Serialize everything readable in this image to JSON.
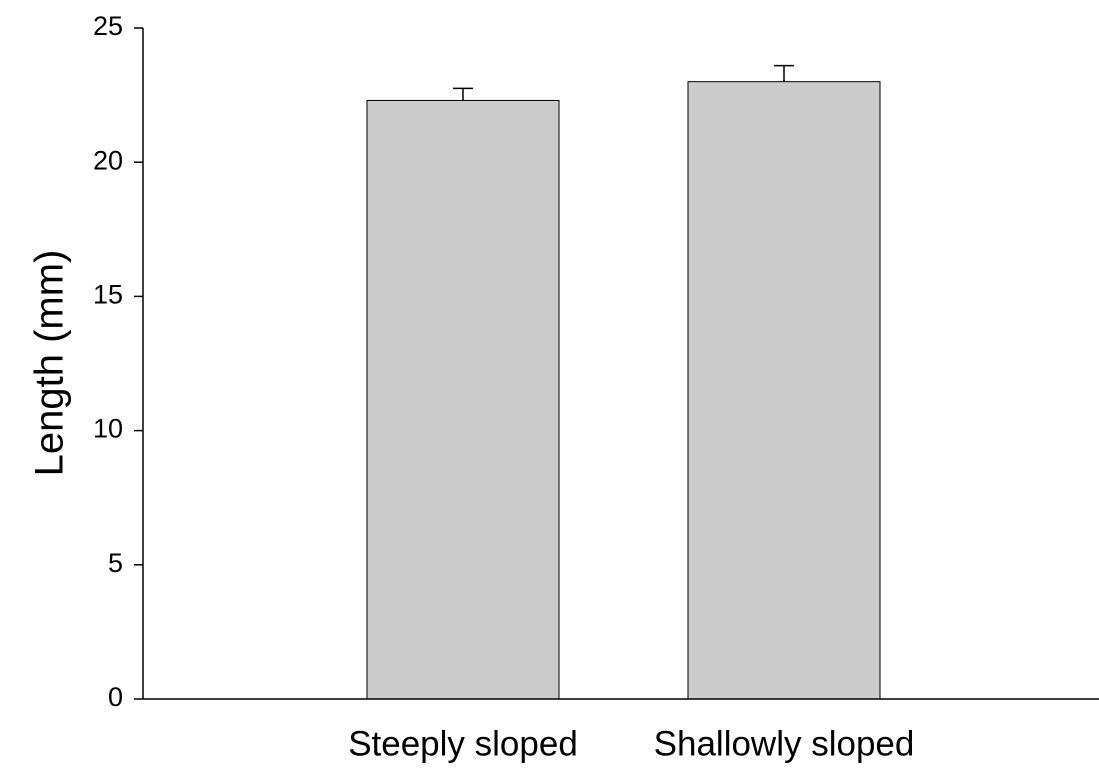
{
  "chart_data": {
    "type": "bar",
    "title": "",
    "xlabel": "",
    "ylabel": "Length (mm)",
    "categories": [
      "Steeply sloped",
      "Shallowly sloped"
    ],
    "values": [
      22.3,
      23.0
    ],
    "errors": [
      0.45,
      0.6
    ],
    "ylim": [
      0,
      25
    ],
    "yticks": [
      0,
      5,
      10,
      15,
      20,
      25
    ],
    "ytick_labels": [
      "0",
      "5",
      "10",
      "15",
      "20",
      "25"
    ],
    "grid": false,
    "legend": "none",
    "bar_color": "#cccccc",
    "edge_color": "#000000"
  }
}
